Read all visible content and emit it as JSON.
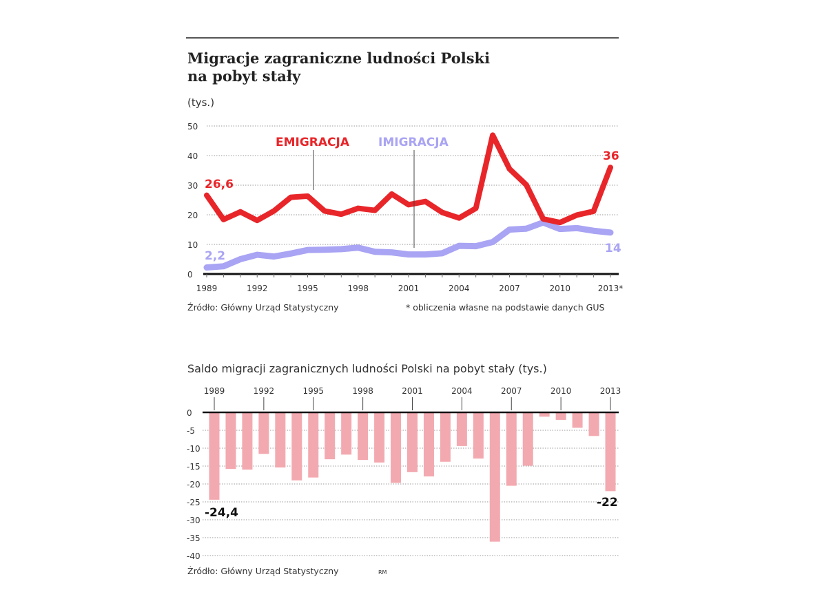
{
  "title_line1": "Migracje zagraniczne ludności Polski",
  "title_line2": "na pobyt stały",
  "unit": "(tys.)",
  "source_top": "Źródło: Główny Urząd Statystyczny",
  "footnote": "* obliczenia własne na podstawie danych GUS",
  "subtitle": "Saldo migracji zagranicznych ludności Polski na pobyt stały (tys.)",
  "source_bottom": "Źródło: Główny Urząd Statystyczny",
  "author": "RM",
  "colors": {
    "emigration": "#e8262a",
    "immigration": "#a9a4f3",
    "saldo": "#f3a9b0"
  },
  "chart_data": [
    {
      "type": "line",
      "title": "Migracje zagraniczne ludności Polski na pobyt stały",
      "ylabel": "(tys.)",
      "ylim": [
        0,
        50
      ],
      "yticks": [
        0,
        10,
        20,
        30,
        40,
        50
      ],
      "x": [
        1989,
        1990,
        1991,
        1992,
        1993,
        1994,
        1995,
        1996,
        1997,
        1998,
        1999,
        2000,
        2001,
        2002,
        2003,
        2004,
        2005,
        2006,
        2007,
        2008,
        2009,
        2010,
        2011,
        2012,
        2013
      ],
      "xtick_labels": [
        "1989",
        "1992",
        "1995",
        "1998",
        "2001",
        "2004",
        "2007",
        "2010",
        "2013*"
      ],
      "series": [
        {
          "name": "EMIGRACJA",
          "values": [
            26.6,
            18.4,
            21.0,
            18.1,
            21.3,
            25.9,
            26.3,
            21.3,
            20.2,
            22.2,
            21.5,
            27.0,
            23.4,
            24.5,
            20.8,
            18.9,
            22.2,
            46.9,
            35.5,
            30.1,
            18.6,
            17.4,
            19.9,
            21.2,
            36
          ]
        },
        {
          "name": "IMIGRACJA",
          "values": [
            2.2,
            2.6,
            5.0,
            6.5,
            5.9,
            6.9,
            8.1,
            8.2,
            8.4,
            8.9,
            7.5,
            7.3,
            6.6,
            6.6,
            7.0,
            9.5,
            9.4,
            10.8,
            15.0,
            15.3,
            17.4,
            15.2,
            15.5,
            14.6,
            14
          ]
        }
      ],
      "annotations": {
        "emig_start": "26,6",
        "emig_end": "36",
        "imig_start": "2,2",
        "imig_end": "14"
      }
    },
    {
      "type": "bar",
      "title": "Saldo migracji zagranicznych ludności Polski na pobyt stały (tys.)",
      "ylim": [
        -40,
        0
      ],
      "yticks": [
        0,
        -5,
        -10,
        -15,
        -20,
        -25,
        -30,
        -35,
        -40
      ],
      "x": [
        1989,
        1990,
        1991,
        1992,
        1993,
        1994,
        1995,
        1996,
        1997,
        1998,
        1999,
        2000,
        2001,
        2002,
        2003,
        2004,
        2005,
        2006,
        2007,
        2008,
        2009,
        2010,
        2011,
        2012,
        2013
      ],
      "xtick_labels": [
        "1989",
        "1992",
        "1995",
        "1998",
        "2001",
        "2004",
        "2007",
        "2010",
        "2013"
      ],
      "values": [
        -24.4,
        -15.8,
        -16.0,
        -11.6,
        -15.4,
        -19.0,
        -18.2,
        -13.1,
        -11.8,
        -13.3,
        -14.0,
        -19.7,
        -16.7,
        -17.9,
        -13.8,
        -9.4,
        -12.9,
        -36.1,
        -20.5,
        -14.9,
        -1.2,
        -2.1,
        -4.3,
        -6.6,
        -22
      ],
      "annotations": {
        "start": "-24,4",
        "end": "-22"
      }
    }
  ]
}
